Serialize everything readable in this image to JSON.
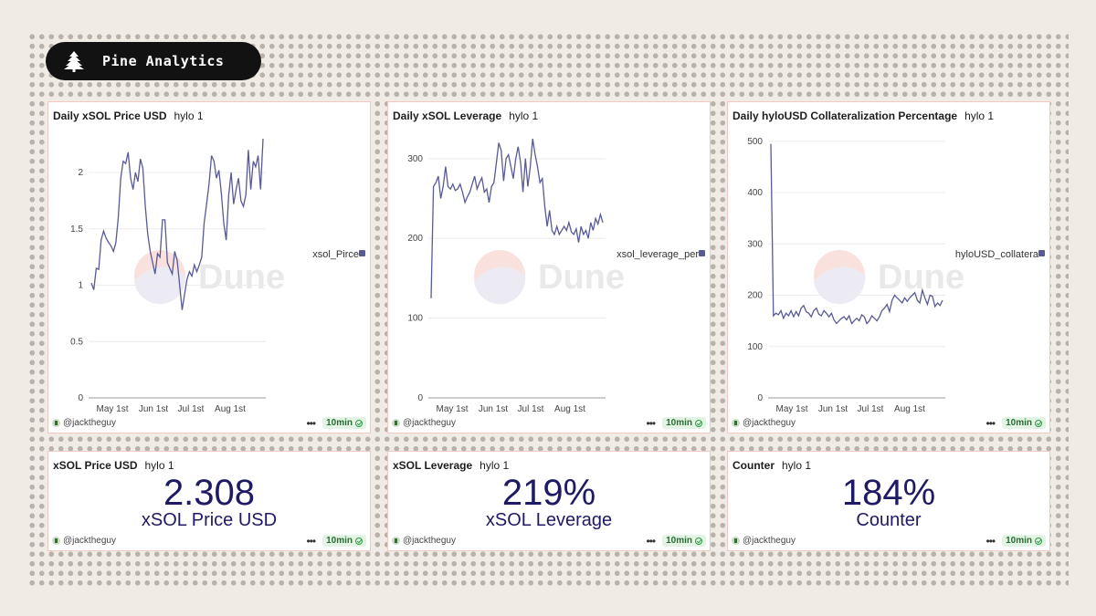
{
  "brand": {
    "name": "Pine Analytics",
    "logo_icon": "pine-tree-icon"
  },
  "watermark": "Dune",
  "colors": {
    "line": "#585a96",
    "value_text": "#1e1a63",
    "card_border": "#f2c9c0",
    "badge_bg": "#121212"
  },
  "charts": [
    {
      "title": "Daily xSOL Price USD",
      "subtitle": "hylo 1",
      "legend": "xsol_Pirce",
      "author": "@jacktheguy",
      "refresh": "10min"
    },
    {
      "title": "Daily xSOL Leverage",
      "subtitle": "hylo 1",
      "legend": "xsol_leverage_per",
      "author": "@jacktheguy",
      "refresh": "10min"
    },
    {
      "title": "Daily hyloUSD Collateralization Percentage",
      "subtitle": "hylo 1",
      "legend": "hyloUSD_collatera",
      "author": "@jacktheguy",
      "refresh": "10min"
    }
  ],
  "counters": [
    {
      "title": "xSOL Price USD",
      "subtitle": "hylo 1",
      "value": "2.308",
      "label": "xSOL Price USD",
      "author": "@jacktheguy",
      "refresh": "10min"
    },
    {
      "title": "xSOL Leverage",
      "subtitle": "hylo 1",
      "value": "219%",
      "label": "xSOL Leverage",
      "author": "@jacktheguy",
      "refresh": "10min"
    },
    {
      "title": "Counter",
      "subtitle": "hylo 1",
      "value": "184%",
      "label": "Counter",
      "author": "@jacktheguy",
      "refresh": "10min"
    }
  ],
  "chart_data": [
    {
      "type": "line",
      "title": "Daily xSOL Price USD",
      "x_ticks": [
        "May 1st",
        "Jun 1st",
        "Jul 1st",
        "Aug 1st"
      ],
      "y_ticks": [
        "0",
        "0.5",
        "1",
        "1.5",
        "2"
      ],
      "ylim": [
        0,
        2.3
      ],
      "grid": true,
      "legend_position": "right",
      "series": [
        {
          "name": "xsol_Pirce",
          "values": [
            1.02,
            0.96,
            1.15,
            1.14,
            1.4,
            1.48,
            1.42,
            1.38,
            1.35,
            1.3,
            1.38,
            1.6,
            1.95,
            2.1,
            2.08,
            2.18,
            1.95,
            1.85,
            2.0,
            1.92,
            2.12,
            2.04,
            1.7,
            1.45,
            1.3,
            1.2,
            1.1,
            1.28,
            1.25,
            1.58,
            1.58,
            1.2,
            1.15,
            1.1,
            1.3,
            1.22,
            1.0,
            0.78,
            0.92,
            1.05,
            1.12,
            1.08,
            1.18,
            1.12,
            1.18,
            1.25,
            1.55,
            1.72,
            1.9,
            2.15,
            2.1,
            1.95,
            2.02,
            1.82,
            1.55,
            1.4,
            1.8,
            2.0,
            1.72,
            1.85,
            1.95,
            1.75,
            1.7,
            1.8,
            2.2,
            1.85,
            2.1,
            2.05,
            2.15,
            1.85,
            2.3
          ]
        }
      ]
    },
    {
      "type": "line",
      "title": "Daily xSOL Leverage",
      "x_ticks": [
        "May 1st",
        "Jun 1st",
        "Jul 1st",
        "Aug 1st"
      ],
      "y_ticks": [
        "0",
        "100",
        "200",
        "300"
      ],
      "ylim": [
        0,
        325
      ],
      "grid": true,
      "legend_position": "right",
      "series": [
        {
          "name": "xsol_leverage_per",
          "values": [
            125,
            265,
            270,
            278,
            250,
            265,
            290,
            265,
            262,
            268,
            260,
            262,
            268,
            258,
            245,
            252,
            258,
            268,
            278,
            262,
            270,
            276,
            258,
            262,
            245,
            265,
            270,
            295,
            320,
            310,
            272,
            300,
            305,
            290,
            275,
            300,
            315,
            295,
            258,
            300,
            265,
            290,
            325,
            305,
            290,
            270,
            275,
            240,
            215,
            235,
            210,
            205,
            215,
            205,
            210,
            215,
            210,
            220,
            208,
            205,
            212,
            195,
            215,
            205,
            210,
            200,
            220,
            210,
            225,
            218,
            230,
            220
          ]
        }
      ]
    },
    {
      "type": "line",
      "title": "Daily hyloUSD Collateralization Percentage",
      "x_ticks": [
        "May 1st",
        "Jun 1st",
        "Jul 1st",
        "Aug 1st"
      ],
      "y_ticks": [
        "0",
        "100",
        "200",
        "300",
        "400",
        "500"
      ],
      "ylim": [
        0,
        505
      ],
      "grid": true,
      "legend_position": "right",
      "series": [
        {
          "name": "hyloUSD_collatera",
          "values": [
            495,
            160,
            165,
            162,
            170,
            155,
            165,
            160,
            170,
            158,
            168,
            160,
            175,
            180,
            168,
            165,
            158,
            170,
            175,
            163,
            160,
            170,
            165,
            158,
            165,
            152,
            145,
            150,
            155,
            158,
            152,
            160,
            145,
            150,
            155,
            150,
            162,
            158,
            145,
            150,
            160,
            155,
            150,
            158,
            170,
            175,
            182,
            168,
            190,
            200,
            195,
            190,
            185,
            195,
            188,
            195,
            200,
            205,
            190,
            185,
            210,
            195,
            182,
            200,
            198,
            178,
            185,
            180,
            190
          ]
        }
      ]
    }
  ]
}
